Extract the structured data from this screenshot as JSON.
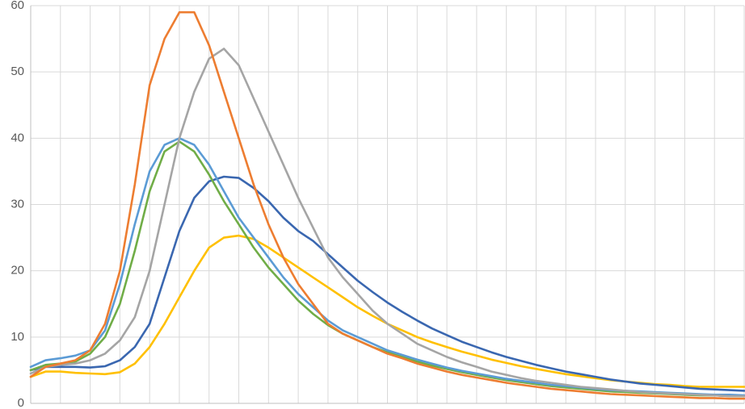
{
  "chart_data": {
    "type": "line",
    "categories": [
      null,
      null,
      null,
      null,
      null,
      null,
      null,
      null,
      null,
      null,
      null,
      null,
      null,
      null,
      null,
      null,
      null,
      null,
      null,
      null,
      null,
      null,
      null,
      null,
      null,
      null,
      null,
      null,
      null,
      null,
      null,
      null,
      null,
      null,
      null,
      null,
      null,
      null,
      null,
      null,
      null,
      null,
      null,
      null,
      null,
      null,
      null,
      null,
      null
    ],
    "ylim": [
      0,
      60
    ],
    "yticks": [
      0,
      10,
      20,
      30,
      40,
      50,
      60
    ],
    "grid": true,
    "series": [
      {
        "color": "#ffc000",
        "values": [
          4,
          4.8,
          4.8,
          4.6,
          4.5,
          4.4,
          4.7,
          6,
          8.5,
          12,
          16,
          20,
          23.5,
          25,
          25.3,
          24.8,
          23.5,
          22,
          20.5,
          19,
          17.5,
          16,
          14.5,
          13.2,
          12,
          11,
          10,
          9.2,
          8.5,
          7.8,
          7.2,
          6.6,
          6.1,
          5.6,
          5.2,
          4.8,
          4.4,
          4.1,
          3.8,
          3.5,
          3.3,
          3.1,
          2.9,
          2.8,
          2.6,
          2.5,
          2.5,
          2.5,
          2.5
        ]
      },
      {
        "color": "#3a67b0",
        "values": [
          5,
          5.5,
          5.5,
          5.5,
          5.4,
          5.6,
          6.5,
          8.5,
          12,
          19,
          26,
          31,
          33.5,
          34.2,
          34,
          32.5,
          30.5,
          28,
          26,
          24.5,
          22.5,
          20.5,
          18.5,
          16.8,
          15.2,
          13.8,
          12.5,
          11.3,
          10.3,
          9.3,
          8.5,
          7.7,
          7,
          6.4,
          5.8,
          5.3,
          4.8,
          4.4,
          4,
          3.6,
          3.3,
          3,
          2.8,
          2.6,
          2.4,
          2.2,
          2.1,
          2,
          1.9
        ]
      },
      {
        "color": "#70ad47",
        "values": [
          5,
          5.8,
          6,
          6.3,
          7.5,
          10,
          15,
          23,
          32,
          38,
          39.5,
          38,
          34.5,
          30.5,
          27,
          23.5,
          20.5,
          18,
          15.5,
          13.5,
          11.8,
          10.5,
          9.5,
          8.5,
          7.7,
          7,
          6.3,
          5.7,
          5.2,
          4.7,
          4.3,
          3.9,
          3.5,
          3.2,
          2.9,
          2.6,
          2.4,
          2.2,
          2,
          1.8,
          1.7,
          1.6,
          1.5,
          1.4,
          1.3,
          1.2,
          1.2,
          1.1,
          1.1
        ]
      },
      {
        "color": "#5b9bd5",
        "values": [
          5.5,
          6.5,
          6.8,
          7.2,
          8,
          11,
          18,
          27,
          35,
          39,
          40,
          39,
          36,
          32,
          28,
          25,
          22,
          19,
          16.5,
          14.5,
          12.5,
          11,
          10,
          9,
          8,
          7.3,
          6.6,
          6,
          5.4,
          4.9,
          4.5,
          4.1,
          3.7,
          3.4,
          3.1,
          2.8,
          2.6,
          2.4,
          2.2,
          2,
          1.9,
          1.8,
          1.7,
          1.6,
          1.5,
          1.4,
          1.3,
          1.3,
          1.2
        ]
      },
      {
        "color": "#a5a5a5",
        "values": [
          4.5,
          5.5,
          5.8,
          6,
          6.5,
          7.5,
          9.5,
          13,
          20,
          30,
          40,
          47,
          52,
          53.5,
          51,
          46,
          41,
          36,
          31,
          26.5,
          22,
          19,
          16.5,
          14,
          12,
          10.5,
          9,
          8,
          7,
          6.2,
          5.5,
          4.8,
          4.3,
          3.8,
          3.4,
          3.1,
          2.8,
          2.5,
          2.3,
          2.1,
          1.9,
          1.7,
          1.6,
          1.5,
          1.4,
          1.3,
          1.2,
          1.1,
          1.1
        ]
      },
      {
        "color": "#ed7d31",
        "values": [
          4,
          5.5,
          6,
          6.5,
          8,
          12,
          20,
          33,
          48,
          55,
          59,
          59,
          54,
          47,
          40,
          33,
          27,
          22,
          18,
          15,
          12,
          10.5,
          9.5,
          8.5,
          7.5,
          6.8,
          6,
          5.4,
          4.8,
          4.3,
          3.9,
          3.5,
          3.1,
          2.8,
          2.5,
          2.2,
          2,
          1.8,
          1.6,
          1.4,
          1.3,
          1.2,
          1.1,
          1,
          0.9,
          0.8,
          0.8,
          0.7,
          0.7
        ]
      }
    ]
  }
}
